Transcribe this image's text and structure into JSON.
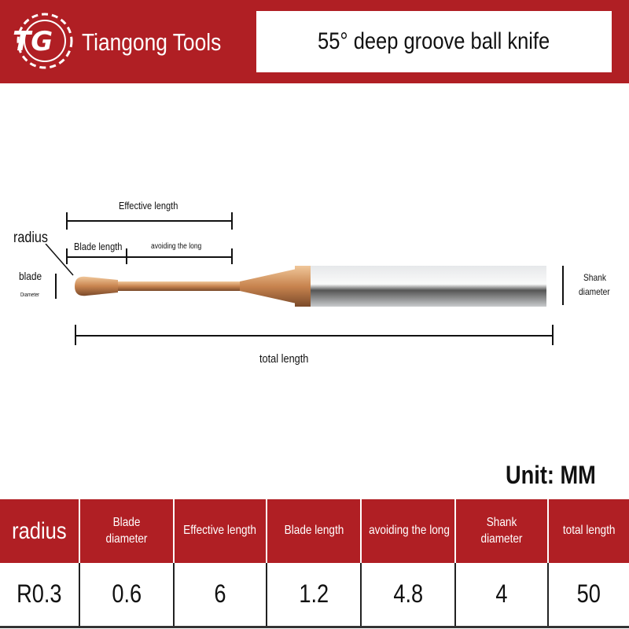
{
  "header": {
    "brand": "Tiangong Tools",
    "logo_text": "TG",
    "title": "55° deep groove ball knife"
  },
  "diagram": {
    "effective_length": "Effective length",
    "radius": "radius",
    "blade_length": "Blade length",
    "avoiding": "avoiding the long",
    "blade": "blade",
    "diameter_small": "Diameter",
    "shank": "Shank",
    "shank_diameter": "diameter",
    "total_length": "total length",
    "tool_colors": {
      "coating": "#c8844f",
      "shank": "#b9bcc0"
    }
  },
  "unit": "Unit: MM",
  "table": {
    "headers": [
      "radius",
      "Blade diameter",
      "Effective length",
      "Blade length",
      "avoiding the long",
      "Shank diameter",
      "total length"
    ],
    "values": [
      "R0.3",
      "0.6",
      "6",
      "1.2",
      "4.8",
      "4",
      "50"
    ]
  }
}
